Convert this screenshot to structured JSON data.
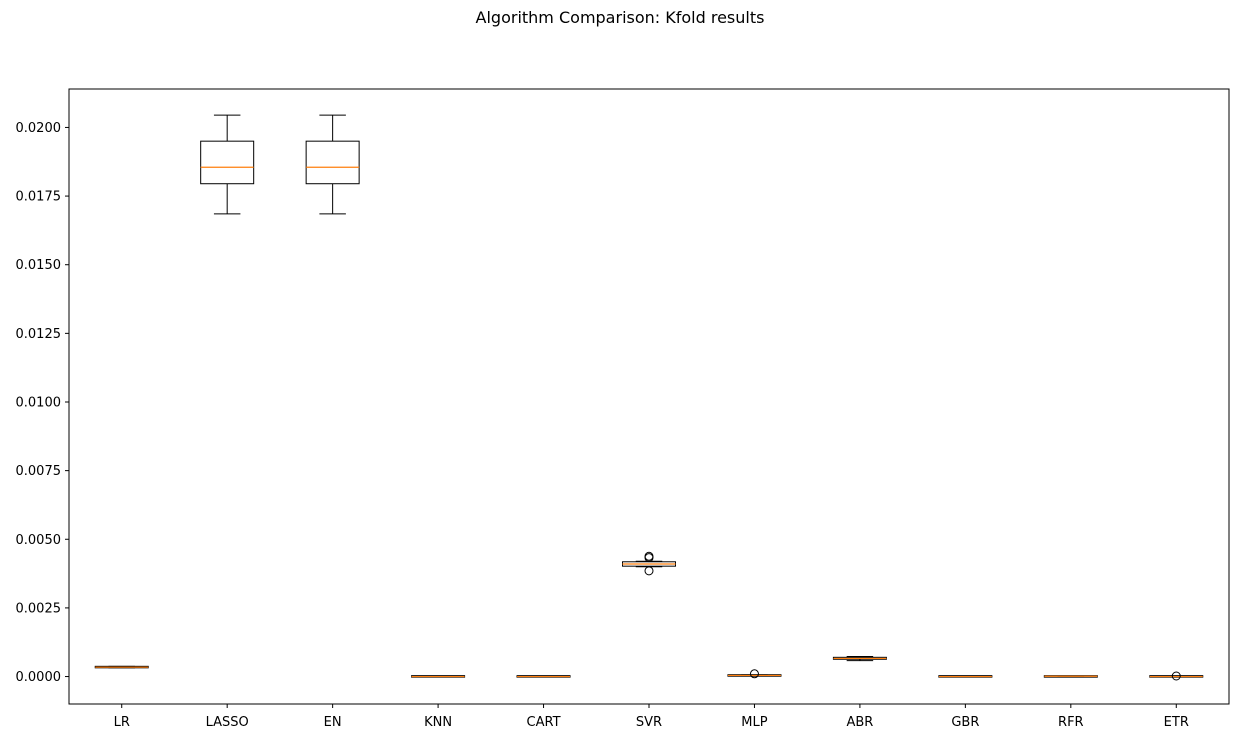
{
  "chart_data": {
    "type": "box",
    "title": "Algorithm Comparison: Kfold results",
    "xlabel": "",
    "ylabel": "",
    "ylim": [
      -0.001,
      0.0214
    ],
    "yticks": [
      0.0,
      0.0025,
      0.005,
      0.0075,
      0.01,
      0.0125,
      0.015,
      0.0175,
      0.02
    ],
    "ytick_labels": [
      "0.0000",
      "0.0025",
      "0.0050",
      "0.0075",
      "0.0100",
      "0.0125",
      "0.0150",
      "0.0175",
      "0.0200"
    ],
    "grid": false,
    "colors": {
      "box": "#000000",
      "median": "#ff7f0e",
      "background": "#ffffff"
    },
    "categories": [
      "LR",
      "LASSO",
      "EN",
      "KNN",
      "CART",
      "SVR",
      "MLP",
      "ABR",
      "GBR",
      "RFR",
      "ETR"
    ],
    "boxes": [
      {
        "label": "LR",
        "whislo": 0.00032,
        "q1": 0.00033,
        "med": 0.00034,
        "q3": 0.00036,
        "whishi": 0.00037,
        "fliers": []
      },
      {
        "label": "LASSO",
        "whislo": 0.01685,
        "q1": 0.01795,
        "med": 0.01855,
        "q3": 0.0195,
        "whishi": 0.02045,
        "fliers": []
      },
      {
        "label": "EN",
        "whislo": 0.01685,
        "q1": 0.01795,
        "med": 0.01855,
        "q3": 0.0195,
        "whishi": 0.02045,
        "fliers": []
      },
      {
        "label": "KNN",
        "whislo": 0.0,
        "q1": 0.0,
        "med": 0.0,
        "q3": 1e-05,
        "whishi": 1e-05,
        "fliers": []
      },
      {
        "label": "CART",
        "whislo": 0.0,
        "q1": 0.0,
        "med": 0.0,
        "q3": 1e-05,
        "whishi": 1e-05,
        "fliers": []
      },
      {
        "label": "SVR",
        "whislo": 0.004,
        "q1": 0.00402,
        "med": 0.0041,
        "q3": 0.00418,
        "whishi": 0.0042,
        "fliers": [
          0.00385,
          0.00433,
          0.00438
        ]
      },
      {
        "label": "MLP",
        "whislo": 2e-05,
        "q1": 3e-05,
        "med": 4e-05,
        "q3": 5e-05,
        "whishi": 6e-05,
        "fliers": [
          0.0001
        ]
      },
      {
        "label": "ABR",
        "whislo": 0.00058,
        "q1": 0.00063,
        "med": 0.00066,
        "q3": 0.0007,
        "whishi": 0.00073,
        "fliers": []
      },
      {
        "label": "GBR",
        "whislo": 0.0,
        "q1": 0.0,
        "med": 0.0,
        "q3": 1e-05,
        "whishi": 1e-05,
        "fliers": []
      },
      {
        "label": "RFR",
        "whislo": 0.0,
        "q1": 0.0,
        "med": 1e-05,
        "q3": 1e-05,
        "whishi": 2e-05,
        "fliers": []
      },
      {
        "label": "ETR",
        "whislo": 0.0,
        "q1": 0.0,
        "med": 0.0,
        "q3": 1e-05,
        "whishi": 1e-05,
        "fliers": [
          2e-05
        ]
      }
    ]
  }
}
